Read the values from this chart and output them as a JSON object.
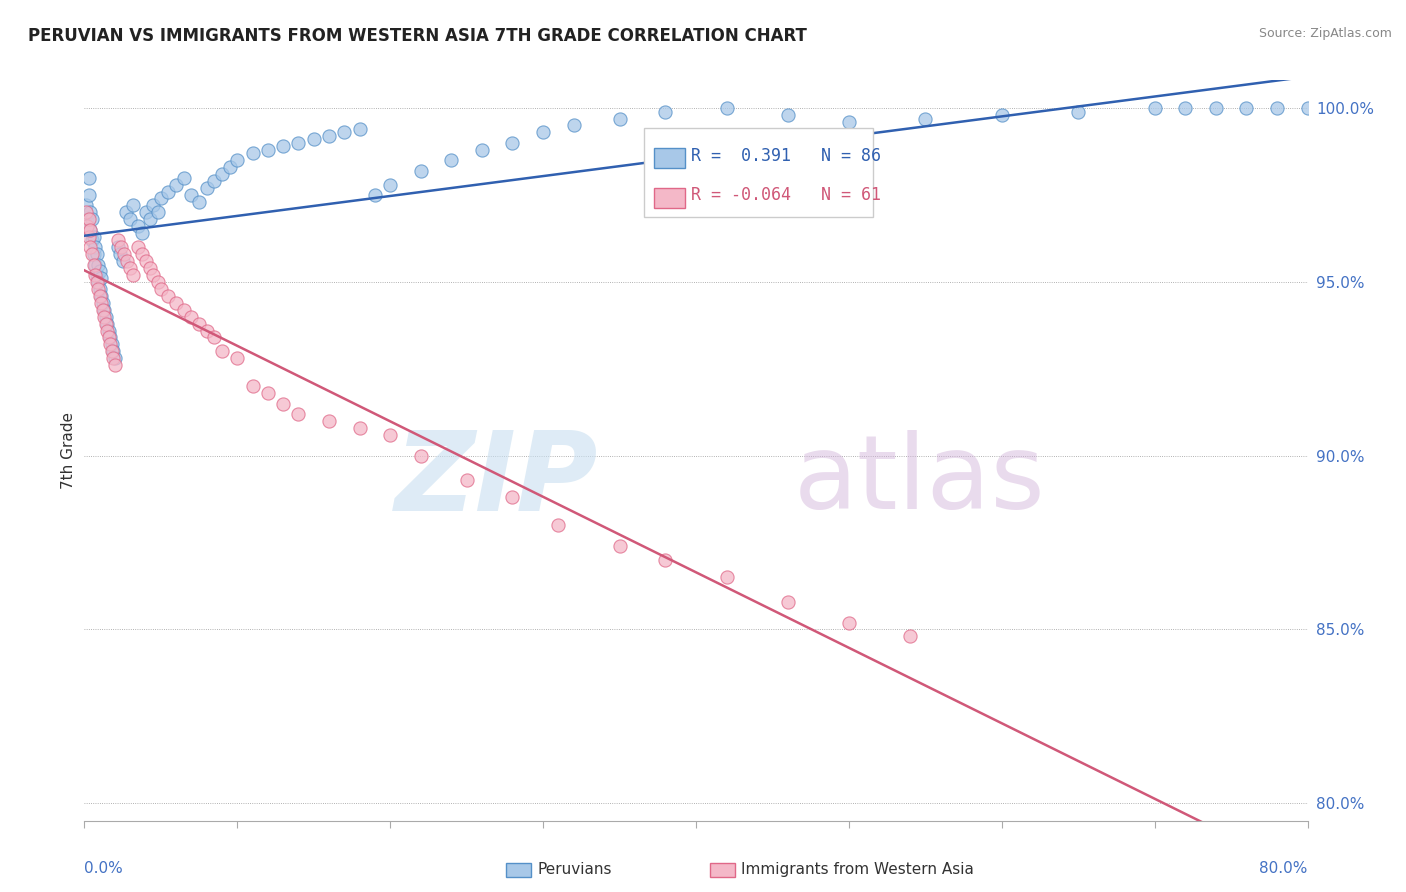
{
  "title": "PERUVIAN VS IMMIGRANTS FROM WESTERN ASIA 7TH GRADE CORRELATION CHART",
  "source": "Source: ZipAtlas.com",
  "ylabel": "7th Grade",
  "xlim": [
    0.0,
    0.8
  ],
  "ylim": [
    0.795,
    1.008
  ],
  "blue_R": 0.391,
  "blue_N": 86,
  "pink_R": -0.064,
  "pink_N": 61,
  "blue_color": "#a8c8e8",
  "pink_color": "#f4b8c8",
  "blue_edge_color": "#5590c8",
  "pink_edge_color": "#e06888",
  "blue_line_color": "#3060b0",
  "pink_line_color": "#d05878",
  "right_yticklabels": [
    "80.0%",
    "85.0%",
    "90.0%",
    "95.0%",
    "100.0%"
  ],
  "right_ytick_vals": [
    0.8,
    0.85,
    0.9,
    0.95,
    1.0
  ],
  "blue_x": [
    0.001,
    0.002,
    0.003,
    0.003,
    0.004,
    0.004,
    0.005,
    0.005,
    0.006,
    0.006,
    0.007,
    0.007,
    0.008,
    0.008,
    0.009,
    0.009,
    0.01,
    0.01,
    0.011,
    0.011,
    0.012,
    0.013,
    0.014,
    0.015,
    0.016,
    0.017,
    0.018,
    0.019,
    0.02,
    0.022,
    0.023,
    0.025,
    0.027,
    0.03,
    0.032,
    0.035,
    0.038,
    0.04,
    0.043,
    0.045,
    0.048,
    0.05,
    0.055,
    0.06,
    0.065,
    0.07,
    0.075,
    0.08,
    0.085,
    0.09,
    0.095,
    0.1,
    0.11,
    0.12,
    0.13,
    0.14,
    0.15,
    0.16,
    0.17,
    0.18,
    0.19,
    0.2,
    0.22,
    0.24,
    0.26,
    0.28,
    0.3,
    0.32,
    0.35,
    0.38,
    0.42,
    0.46,
    0.5,
    0.55,
    0.6,
    0.65,
    0.7,
    0.72,
    0.74,
    0.76,
    0.78,
    0.8,
    0.81,
    0.83,
    0.85,
    0.87
  ],
  "blue_y": [
    0.972,
    0.968,
    0.975,
    0.98,
    0.965,
    0.97,
    0.962,
    0.968,
    0.958,
    0.963,
    0.955,
    0.96,
    0.952,
    0.958,
    0.95,
    0.955,
    0.948,
    0.953,
    0.946,
    0.951,
    0.944,
    0.942,
    0.94,
    0.938,
    0.936,
    0.934,
    0.932,
    0.93,
    0.928,
    0.96,
    0.958,
    0.956,
    0.97,
    0.968,
    0.972,
    0.966,
    0.964,
    0.97,
    0.968,
    0.972,
    0.97,
    0.974,
    0.976,
    0.978,
    0.98,
    0.975,
    0.973,
    0.977,
    0.979,
    0.981,
    0.983,
    0.985,
    0.987,
    0.988,
    0.989,
    0.99,
    0.991,
    0.992,
    0.993,
    0.994,
    0.975,
    0.978,
    0.982,
    0.985,
    0.988,
    0.99,
    0.993,
    0.995,
    0.997,
    0.999,
    1.0,
    0.998,
    0.996,
    0.997,
    0.998,
    0.999,
    1.0,
    1.0,
    1.0,
    1.0,
    1.0,
    1.0,
    1.0,
    1.0,
    1.0,
    1.0
  ],
  "pink_x": [
    0.001,
    0.002,
    0.003,
    0.003,
    0.004,
    0.004,
    0.005,
    0.006,
    0.007,
    0.008,
    0.009,
    0.01,
    0.011,
    0.012,
    0.013,
    0.014,
    0.015,
    0.016,
    0.017,
    0.018,
    0.019,
    0.02,
    0.022,
    0.024,
    0.026,
    0.028,
    0.03,
    0.032,
    0.035,
    0.038,
    0.04,
    0.043,
    0.045,
    0.048,
    0.05,
    0.055,
    0.06,
    0.065,
    0.07,
    0.075,
    0.08,
    0.085,
    0.09,
    0.1,
    0.11,
    0.12,
    0.13,
    0.14,
    0.16,
    0.18,
    0.2,
    0.22,
    0.25,
    0.28,
    0.31,
    0.35,
    0.38,
    0.42,
    0.46,
    0.5,
    0.54
  ],
  "pink_y": [
    0.97,
    0.966,
    0.963,
    0.968,
    0.96,
    0.965,
    0.958,
    0.955,
    0.952,
    0.95,
    0.948,
    0.946,
    0.944,
    0.942,
    0.94,
    0.938,
    0.936,
    0.934,
    0.932,
    0.93,
    0.928,
    0.926,
    0.962,
    0.96,
    0.958,
    0.956,
    0.954,
    0.952,
    0.96,
    0.958,
    0.956,
    0.954,
    0.952,
    0.95,
    0.948,
    0.946,
    0.944,
    0.942,
    0.94,
    0.938,
    0.936,
    0.934,
    0.93,
    0.928,
    0.92,
    0.918,
    0.915,
    0.912,
    0.91,
    0.908,
    0.906,
    0.9,
    0.893,
    0.888,
    0.88,
    0.874,
    0.87,
    0.865,
    0.858,
    0.852,
    0.848
  ]
}
